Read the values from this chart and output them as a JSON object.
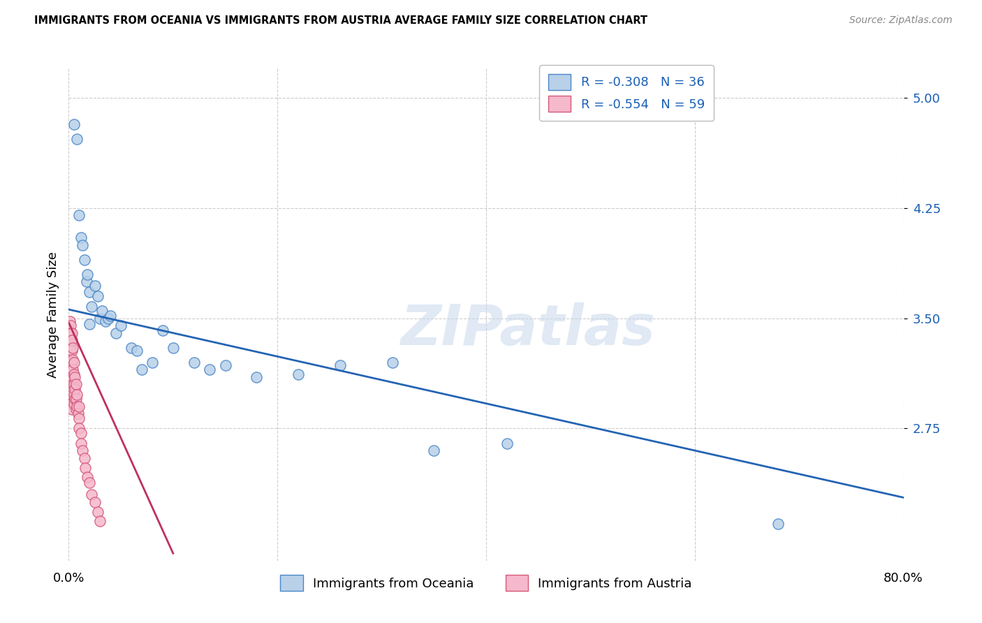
{
  "title": "IMMIGRANTS FROM OCEANIA VS IMMIGRANTS FROM AUSTRIA AVERAGE FAMILY SIZE CORRELATION CHART",
  "source": "Source: ZipAtlas.com",
  "ylabel": "Average Family Size",
  "xmin": 0.0,
  "xmax": 0.8,
  "ymin": 1.85,
  "ymax": 5.2,
  "yticks": [
    2.75,
    3.5,
    4.25,
    5.0
  ],
  "series1_name": "Immigrants from Oceania",
  "series1_face_color": "#b8d0e8",
  "series1_edge_color": "#4a86c8",
  "series1_line_color": "#2464b4",
  "series1_R": -0.308,
  "series1_N": 36,
  "series2_name": "Immigrants from Austria",
  "series2_face_color": "#f5b8cc",
  "series2_edge_color": "#d45878",
  "series2_line_color": "#c03060",
  "series2_R": -0.554,
  "series2_N": 59,
  "watermark": "ZIPatlas",
  "R_label_color": "#1a5fb4",
  "blue_line_x0": 0.0,
  "blue_line_y0": 3.56,
  "blue_line_x1": 0.8,
  "blue_line_y1": 2.28,
  "pink_line_x0": 0.0,
  "pink_line_y0": 3.47,
  "pink_line_x1": 0.1,
  "pink_line_y1": 1.9,
  "oceania_x": [
    0.005,
    0.008,
    0.01,
    0.012,
    0.013,
    0.015,
    0.017,
    0.018,
    0.02,
    0.022,
    0.025,
    0.028,
    0.03,
    0.032,
    0.035,
    0.038,
    0.04,
    0.045,
    0.05,
    0.06,
    0.065,
    0.07,
    0.08,
    0.09,
    0.1,
    0.12,
    0.135,
    0.15,
    0.18,
    0.22,
    0.26,
    0.31,
    0.35,
    0.42,
    0.68,
    0.02
  ],
  "oceania_y": [
    4.82,
    4.72,
    4.2,
    4.05,
    4.0,
    3.9,
    3.75,
    3.8,
    3.68,
    3.58,
    3.72,
    3.65,
    3.5,
    3.55,
    3.48,
    3.5,
    3.52,
    3.4,
    3.45,
    3.3,
    3.28,
    3.15,
    3.2,
    3.42,
    3.3,
    3.2,
    3.15,
    3.18,
    3.1,
    3.12,
    3.18,
    3.2,
    2.6,
    2.65,
    2.1,
    3.46
  ],
  "austria_x": [
    0.001,
    0.001,
    0.001,
    0.001,
    0.001,
    0.001,
    0.001,
    0.001,
    0.002,
    0.002,
    0.002,
    0.002,
    0.002,
    0.002,
    0.002,
    0.002,
    0.002,
    0.003,
    0.003,
    0.003,
    0.003,
    0.003,
    0.003,
    0.003,
    0.003,
    0.003,
    0.003,
    0.004,
    0.004,
    0.004,
    0.004,
    0.005,
    0.005,
    0.005,
    0.005,
    0.005,
    0.006,
    0.006,
    0.006,
    0.007,
    0.007,
    0.007,
    0.008,
    0.008,
    0.009,
    0.01,
    0.01,
    0.01,
    0.012,
    0.012,
    0.013,
    0.015,
    0.016,
    0.018,
    0.02,
    0.022,
    0.025,
    0.028,
    0.03
  ],
  "austria_y": [
    3.48,
    3.42,
    3.38,
    3.32,
    3.28,
    3.2,
    3.15,
    3.1,
    3.45,
    3.4,
    3.35,
    3.28,
    3.22,
    3.18,
    3.12,
    3.08,
    3.02,
    3.4,
    3.35,
    3.28,
    3.2,
    3.15,
    3.08,
    3.02,
    2.98,
    2.92,
    2.88,
    3.3,
    3.22,
    3.15,
    3.05,
    3.2,
    3.12,
    3.05,
    2.98,
    2.92,
    3.1,
    3.02,
    2.95,
    3.05,
    2.95,
    2.88,
    2.98,
    2.9,
    2.85,
    2.9,
    2.82,
    2.75,
    2.72,
    2.65,
    2.6,
    2.55,
    2.48,
    2.42,
    2.38,
    2.3,
    2.25,
    2.18,
    2.12
  ]
}
